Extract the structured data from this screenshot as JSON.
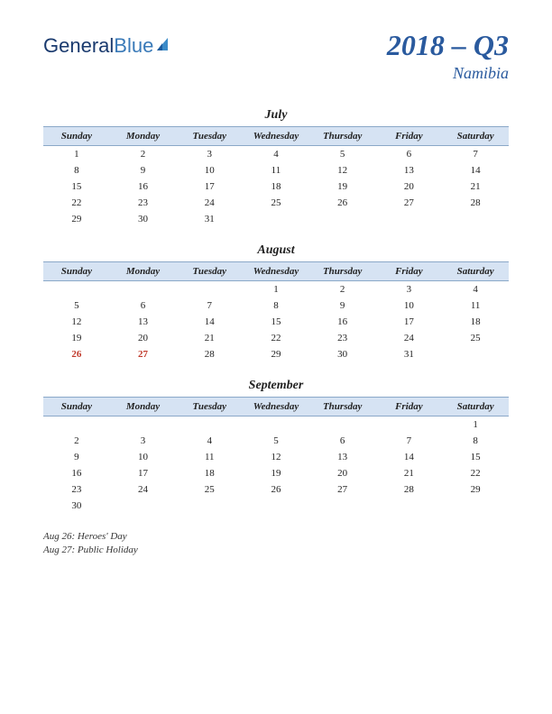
{
  "logo": {
    "part1": "General",
    "part2": "Blue",
    "colors": {
      "part1": "#1a3a6e",
      "part2": "#3a7ab8",
      "icon": "#3a8ac8"
    }
  },
  "title": {
    "main": "2018 – Q3",
    "sub": "Namibia",
    "color": "#2a5a9e"
  },
  "dayHeaders": [
    "Sunday",
    "Monday",
    "Tuesday",
    "Wednesday",
    "Thursday",
    "Friday",
    "Saturday"
  ],
  "headerBg": "#d6e3f3",
  "headerBorder": "#8aa8c8",
  "holidayColor": "#c0392b",
  "months": [
    {
      "name": "July",
      "weeks": [
        [
          "1",
          "2",
          "3",
          "4",
          "5",
          "6",
          "7"
        ],
        [
          "8",
          "9",
          "10",
          "11",
          "12",
          "13",
          "14"
        ],
        [
          "15",
          "16",
          "17",
          "18",
          "19",
          "20",
          "21"
        ],
        [
          "22",
          "23",
          "24",
          "25",
          "26",
          "27",
          "28"
        ],
        [
          "29",
          "30",
          "31",
          "",
          "",
          "",
          ""
        ]
      ],
      "holidays": []
    },
    {
      "name": "August",
      "weeks": [
        [
          "",
          "",
          "",
          "1",
          "2",
          "3",
          "4"
        ],
        [
          "5",
          "6",
          "7",
          "8",
          "9",
          "10",
          "11"
        ],
        [
          "12",
          "13",
          "14",
          "15",
          "16",
          "17",
          "18"
        ],
        [
          "19",
          "20",
          "21",
          "22",
          "23",
          "24",
          "25"
        ],
        [
          "26",
          "27",
          "28",
          "29",
          "30",
          "31",
          ""
        ]
      ],
      "holidays": [
        "26",
        "27"
      ]
    },
    {
      "name": "September",
      "weeks": [
        [
          "",
          "",
          "",
          "",
          "",
          "",
          "1"
        ],
        [
          "2",
          "3",
          "4",
          "5",
          "6",
          "7",
          "8"
        ],
        [
          "9",
          "10",
          "11",
          "12",
          "13",
          "14",
          "15"
        ],
        [
          "16",
          "17",
          "18",
          "19",
          "20",
          "21",
          "22"
        ],
        [
          "23",
          "24",
          "25",
          "26",
          "27",
          "28",
          "29"
        ],
        [
          "30",
          "",
          "",
          "",
          "",
          "",
          ""
        ]
      ],
      "holidays": []
    }
  ],
  "holidayNotes": [
    "Aug 26: Heroes' Day",
    "Aug 27: Public Holiday"
  ]
}
